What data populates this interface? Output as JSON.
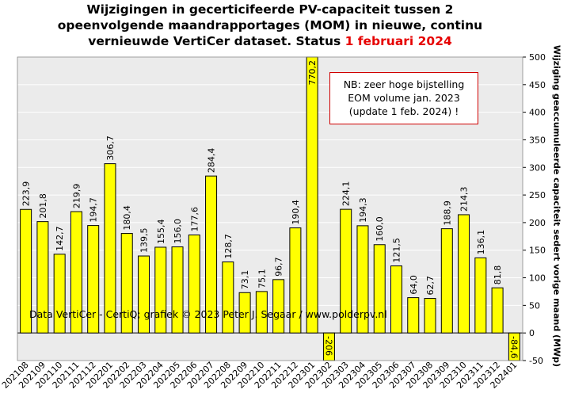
{
  "title": {
    "line1": "Wijzigingen  in gecerticifeerde PV-capaciteit tussen 2",
    "line2": "opeenvolgende maandrapportages (MOM) in nieuwe, continu",
    "line3_prefix": "vernieuwde VertiCer dataset. Status ",
    "line3_date": "1 februari 2024"
  },
  "note": {
    "line1": "NB: zeer hoge bijstelling",
    "line2": "EOM volume jan. 2023",
    "line3": "(update 1 feb. 2024) !"
  },
  "credit": "Data VertiCer - CertiQ; grafiek © 2023 Peter J. Segaar / www.polderpv.nl",
  "colors": {
    "bar_fill": "#ffff00",
    "bar_stroke": "#000000",
    "plot_bg": "#ebebeb",
    "grid": "#ffffff",
    "status_date": "#e60000",
    "note_border": "#d00000"
  },
  "chart_data": {
    "type": "bar",
    "title": "Wijzigingen in gecerticifeerde PV-capaciteit tussen 2 opeenvolgende maandrapportages (MOM) in nieuwe, continu vernieuwde VertiCer dataset. Status 1 februari 2024",
    "ylabel": "Wijziging geaccumuleerde capaciteit sedert vorige maand (MWp)",
    "xlabel": "",
    "ylim": [
      -50,
      500
    ],
    "yticks": [
      -50,
      0,
      50,
      100,
      150,
      200,
      250,
      300,
      350,
      400,
      450,
      500
    ],
    "y_axis_position": "right",
    "grid": true,
    "categories": [
      "202108",
      "202109",
      "202110",
      "202111",
      "202112",
      "202201",
      "202202",
      "202203",
      "202204",
      "202205",
      "202206",
      "202207",
      "202208",
      "202209",
      "202210",
      "202211",
      "202212",
      "202301",
      "202302",
      "202303",
      "202304",
      "202305",
      "202306",
      "202307",
      "202308",
      "202309",
      "202310",
      "202311",
      "202312",
      "202401"
    ],
    "values": [
      223.9,
      201.8,
      142.7,
      219.9,
      194.7,
      306.7,
      180.4,
      139.5,
      155.4,
      156.0,
      177.6,
      284.4,
      128.7,
      73.1,
      75.1,
      96.7,
      190.4,
      770.2,
      -206,
      224.1,
      194.3,
      160.0,
      121.5,
      64.0,
      62.7,
      188.9,
      214.3,
      136.1,
      81.8,
      -84.6
    ],
    "data_labels": [
      "223,9",
      "201,8",
      "142,7",
      "219,9",
      "194,7",
      "306,7",
      "180,4",
      "139,5",
      "155,4",
      "156,0",
      "177,6",
      "284,4",
      "128,7",
      "73,1",
      "75,1",
      "96,7",
      "190,4",
      "770,2",
      "-206",
      "224,1",
      "194,3",
      "160,0",
      "121,5",
      "64,0",
      "62,7",
      "188,9",
      "214,3",
      "136,1",
      "81,8",
      "-84,6"
    ]
  }
}
